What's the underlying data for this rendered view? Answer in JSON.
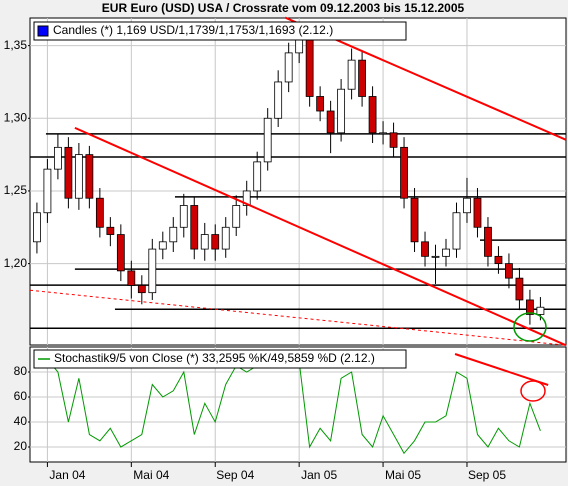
{
  "chart_data": [
    {
      "type": "candlestick",
      "title": "EUR Euro (USD) USA / Crossrate vom 09.12.2003 bis 15.12.2005",
      "name": "Candles (*) 1,169 USD/1,1739/1,1753/1,1693 (2.12.)",
      "color": "#0000ff",
      "up_color": "#ffffff",
      "down_color": "#cc0000",
      "x": [
        0.5,
        1,
        1.5,
        2,
        2.5,
        3,
        3.5,
        4,
        4.5,
        5,
        5.5,
        6,
        6.5,
        7,
        7.5,
        8,
        8.5,
        9,
        9.5,
        10,
        10.5,
        11,
        11.5,
        12,
        12.5,
        13,
        13.5,
        14,
        14.5,
        15,
        15.5,
        16,
        16.5,
        17,
        17.5,
        18,
        18.5,
        19,
        19.5,
        20,
        20.5,
        21,
        21.5,
        22,
        22.5,
        23,
        23.5,
        24,
        24.5
      ],
      "open": [
        1.215,
        1.235,
        1.265,
        1.28,
        1.245,
        1.275,
        1.245,
        1.225,
        1.22,
        1.195,
        1.185,
        1.18,
        1.21,
        1.215,
        1.225,
        1.24,
        1.21,
        1.22,
        1.21,
        1.225,
        1.24,
        1.25,
        1.27,
        1.3,
        1.325,
        1.345,
        1.355,
        1.315,
        1.305,
        1.29,
        1.32,
        1.34,
        1.315,
        1.29,
        1.29,
        1.28,
        1.245,
        1.215,
        1.205,
        1.205,
        1.21,
        1.235,
        1.245,
        1.225,
        1.205,
        1.2,
        1.19,
        1.175,
        1.165
      ],
      "high": [
        1.242,
        1.272,
        1.289,
        1.287,
        1.283,
        1.281,
        1.252,
        1.232,
        1.227,
        1.202,
        1.192,
        1.217,
        1.222,
        1.232,
        1.248,
        1.246,
        1.228,
        1.227,
        1.232,
        1.247,
        1.257,
        1.277,
        1.307,
        1.333,
        1.352,
        1.363,
        1.36,
        1.322,
        1.312,
        1.327,
        1.348,
        1.346,
        1.322,
        1.298,
        1.297,
        1.287,
        1.252,
        1.222,
        1.213,
        1.217,
        1.242,
        1.259,
        1.252,
        1.232,
        1.212,
        1.207,
        1.197,
        1.182,
        1.177
      ],
      "low": [
        1.207,
        1.228,
        1.258,
        1.238,
        1.237,
        1.238,
        1.218,
        1.212,
        1.188,
        1.176,
        1.172,
        1.175,
        1.203,
        1.208,
        1.218,
        1.203,
        1.202,
        1.202,
        1.204,
        1.219,
        1.233,
        1.244,
        1.264,
        1.294,
        1.318,
        1.338,
        1.308,
        1.298,
        1.276,
        1.284,
        1.313,
        1.308,
        1.283,
        1.282,
        1.273,
        1.238,
        1.208,
        1.198,
        1.186,
        1.198,
        1.204,
        1.228,
        1.218,
        1.198,
        1.193,
        1.183,
        1.168,
        1.158,
        1.161
      ],
      "close": [
        1.235,
        1.265,
        1.28,
        1.245,
        1.275,
        1.245,
        1.225,
        1.22,
        1.195,
        1.185,
        1.18,
        1.21,
        1.215,
        1.225,
        1.24,
        1.21,
        1.22,
        1.21,
        1.225,
        1.24,
        1.25,
        1.27,
        1.3,
        1.325,
        1.345,
        1.355,
        1.315,
        1.305,
        1.29,
        1.32,
        1.34,
        1.315,
        1.29,
        1.29,
        1.28,
        1.245,
        1.215,
        1.205,
        1.205,
        1.21,
        1.235,
        1.245,
        1.225,
        1.205,
        1.2,
        1.19,
        1.175,
        1.165,
        1.17
      ],
      "xlim": [
        0.17,
        25.72
      ],
      "ylim": [
        1.144,
        1.369
      ],
      "yticks": [
        {
          "value": 1.2,
          "label": "1,20"
        },
        {
          "value": 1.25,
          "label": "1,25"
        },
        {
          "value": 1.3,
          "label": "1,30"
        },
        {
          "value": 1.35,
          "label": "1,35"
        }
      ],
      "grid": true,
      "levels": [
        {
          "y": 1.2893,
          "x": 0.93
        },
        {
          "y": 1.2734,
          "x": 0.17
        },
        {
          "y": 1.2459,
          "x": 7.08
        },
        {
          "y": 1.2162,
          "x": 21.62
        },
        {
          "y": 1.1962,
          "x": 2.31
        },
        {
          "y": 1.1852,
          "x": 0.17
        },
        {
          "y": 1.1686,
          "x": 4.22
        },
        {
          "y": 1.1555,
          "x": 0.17
        }
      ],
      "level_color": "#000000",
      "trendlines": [
        {
          "x": [
            2.31,
            25.72
          ],
          "y": [
            1.2934,
            1.1438
          ],
          "color": "#ff0000",
          "dashed": false
        },
        {
          "x": [
            12.33,
            25.72
          ],
          "y": [
            1.3693,
            1.2852
          ],
          "color": "#ff0000",
          "dashed": false
        },
        {
          "x": [
            0.17,
            25.72
          ],
          "y": [
            1.1817,
            1.1438
          ],
          "color": "#ff0000",
          "dashed": true
        }
      ]
    },
    {
      "type": "line",
      "series": [
        {
          "name": "Stochastik9/5 von Close (*) 33,2595 %K/49,5859 %D (2.12.)",
          "color": "#009900",
          "values": [
            85,
            90,
            80,
            40,
            75,
            30,
            25,
            35,
            20,
            25,
            30,
            70,
            60,
            65,
            80,
            30,
            55,
            40,
            70,
            85,
            80,
            85,
            90,
            92,
            90,
            88,
            20,
            35,
            25,
            75,
            80,
            30,
            20,
            45,
            30,
            15,
            25,
            40,
            40,
            45,
            80,
            75,
            30,
            20,
            35,
            25,
            20,
            55,
            33
          ]
        }
      ],
      "xlim": [
        0.17,
        25.72
      ],
      "ylim": [
        8,
        100
      ],
      "yticks": [
        20,
        40,
        60,
        80
      ],
      "xticks": [
        {
          "value": 1,
          "label": "Jan 04"
        },
        {
          "value": 5,
          "label": "Mai 04"
        },
        {
          "value": 9,
          "label": "Sep 04"
        },
        {
          "value": 13,
          "label": "Jan 05"
        },
        {
          "value": 17,
          "label": "Mai 05"
        },
        {
          "value": 21,
          "label": "Sep 05"
        }
      ],
      "grid": true,
      "trendlines": [
        {
          "x": [
            20.43,
            24.87
          ],
          "y": [
            94.4,
            69.6
          ],
          "color": "#ff0000",
          "dashed": false
        }
      ]
    }
  ]
}
